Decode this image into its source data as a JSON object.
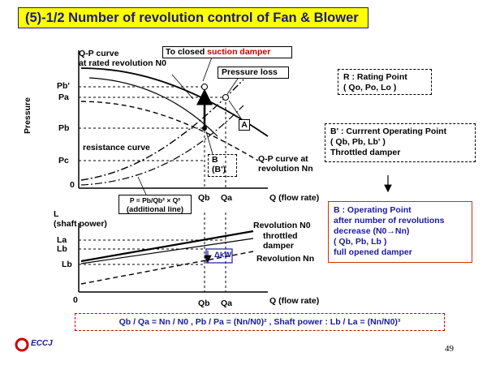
{
  "title": "(5)-1/2 Number of revolution control of Fan & Blower",
  "colors": {
    "title_bg": "#ffff00",
    "title_text": "#1a1a8c",
    "accent_red": "#cc0000",
    "footer_blue": "#1a1aa0"
  },
  "upper": {
    "qp_rated": [
      "Q-P curve",
      "at rated revolution N0"
    ],
    "to_closed_prefix": "To closed ",
    "to_closed_highlight": "suction damper",
    "pressure_loss": "Pressure loss",
    "label_A": "A",
    "label_B": "B",
    "label_Bprime": "(B')",
    "qp_nn": [
      "Q-P curve at",
      "revolution Nn"
    ],
    "resistance_curve": "resistance curve",
    "ylabel": "Pressure",
    "yticks": [
      "Pb'",
      "Pa",
      "Pb",
      "Pc",
      "0"
    ],
    "xticks": [
      "Qb",
      "Qa"
    ],
    "xlabel": "Q (flow rate)",
    "formula": "P = Pb/Qb² × Q²",
    "additional": "(additional line)"
  },
  "lower": {
    "ylabel": [
      "L",
      "(shaft power)"
    ],
    "yticks": [
      "La",
      "Lb",
      "Lb"
    ],
    "zero": "0",
    "xticks": [
      "Qb",
      "Qa"
    ],
    "xlabel": "Q (flow rate)",
    "rev_n0": "Revolution N0",
    "throttled": [
      "throttled",
      "damper"
    ],
    "rev_nn": "Revolution Nn",
    "delta_kw": "ΔkW"
  },
  "right": {
    "r_lines": [
      "R : Rating Point",
      "( Qo, Po, Lo )"
    ],
    "bp_lines": [
      "B' : Currrent Operating Point",
      "( Qb, Pb, Lb' )",
      "Throttled damper"
    ],
    "arrow": "↓",
    "b_lines": [
      "B : Operating Point",
      "after number of revolutions",
      "decrease (N0→Nn)",
      "( Qb, Pb, Lb )",
      "full opened damper"
    ]
  },
  "footer": "Qb / Qa = Nn / N0 ,   Pb / Pa = (Nn/N0)² ,   Shaft power : Lb / La = (Nn/N0)³",
  "logo": "ECCJ",
  "page_number": "49"
}
